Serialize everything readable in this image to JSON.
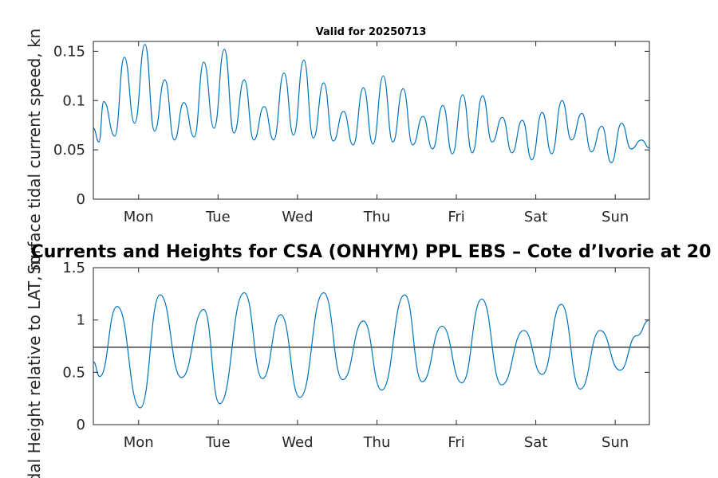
{
  "chart_data": [
    {
      "type": "line",
      "title": "Valid for 20250713",
      "ylabel": "Surface tidal current speed, kn",
      "xlabel": "",
      "x_tick_labels": [
        "Mon",
        "Tue",
        "Wed",
        "Thu",
        "Fri",
        "Sat",
        "Sun"
      ],
      "x_tick_positions_days": [
        0,
        1,
        2,
        3,
        4,
        5,
        6
      ],
      "xlim": [
        -0.57,
        6.43
      ],
      "ylim": [
        0,
        0.16
      ],
      "y_ticks": [
        0,
        0.05,
        0.1,
        0.15
      ],
      "y_tick_labels": [
        "0",
        "0.05",
        "0.1",
        "0.15"
      ],
      "grid": false,
      "series_color": "#0072BD",
      "series": [
        {
          "x": [
            -0.57,
            -0.5,
            -0.44,
            -0.3,
            -0.18,
            -0.05,
            0.08,
            0.2,
            0.33,
            0.45,
            0.57,
            0.7,
            0.82,
            0.95,
            1.08,
            1.2,
            1.33,
            1.45,
            1.58,
            1.7,
            1.83,
            1.95,
            2.08,
            2.2,
            2.33,
            2.45,
            2.58,
            2.7,
            2.83,
            2.95,
            3.08,
            3.2,
            3.33,
            3.45,
            3.58,
            3.7,
            3.83,
            3.95,
            4.08,
            4.2,
            4.33,
            4.45,
            4.58,
            4.7,
            4.83,
            4.95,
            5.08,
            5.2,
            5.33,
            5.45,
            5.58,
            5.7,
            5.83,
            5.95,
            6.08,
            6.2,
            6.33,
            6.43
          ],
          "y": [
            0.072,
            0.058,
            0.099,
            0.064,
            0.144,
            0.077,
            0.157,
            0.069,
            0.121,
            0.06,
            0.098,
            0.063,
            0.139,
            0.072,
            0.152,
            0.067,
            0.121,
            0.06,
            0.094,
            0.06,
            0.128,
            0.065,
            0.141,
            0.062,
            0.118,
            0.059,
            0.089,
            0.055,
            0.113,
            0.056,
            0.125,
            0.058,
            0.112,
            0.055,
            0.084,
            0.051,
            0.095,
            0.046,
            0.106,
            0.047,
            0.105,
            0.058,
            0.083,
            0.047,
            0.08,
            0.04,
            0.088,
            0.046,
            0.1,
            0.06,
            0.087,
            0.048,
            0.074,
            0.037,
            0.077,
            0.051,
            0.06,
            0.052
          ]
        }
      ]
    },
    {
      "type": "line",
      "title": "Currents and Heights for CSA (ONHYM) PPL EBS  – Cote d’Ivorie at 20",
      "ylabel": "Tidal Height relative to LAT, m",
      "xlabel": "",
      "x_tick_labels": [
        "Mon",
        "Tue",
        "Wed",
        "Thu",
        "Fri",
        "Sat",
        "Sun"
      ],
      "x_tick_positions_days": [
        0,
        1,
        2,
        3,
        4,
        5,
        6
      ],
      "xlim": [
        -0.57,
        6.43
      ],
      "ylim": [
        0,
        1.5
      ],
      "y_ticks": [
        0,
        0.5,
        1,
        1.5
      ],
      "y_tick_labels": [
        "0",
        "0.5",
        "1",
        "1.5"
      ],
      "reference_line": 0.74,
      "reference_line_color": "#404040",
      "grid": false,
      "series_color": "#0072BD",
      "series": [
        {
          "x": [
            -0.57,
            -0.49,
            -0.27,
            0.02,
            0.27,
            0.54,
            0.82,
            1.02,
            1.33,
            1.56,
            1.79,
            2.03,
            2.33,
            2.57,
            2.83,
            3.06,
            3.35,
            3.57,
            3.82,
            4.07,
            4.32,
            4.57,
            4.85,
            5.08,
            5.32,
            5.56,
            5.81,
            6.06,
            6.27,
            6.43
          ],
          "y": [
            0.6,
            0.46,
            1.13,
            0.16,
            1.24,
            0.45,
            1.1,
            0.2,
            1.26,
            0.44,
            1.05,
            0.26,
            1.26,
            0.43,
            0.99,
            0.33,
            1.24,
            0.41,
            0.94,
            0.4,
            1.2,
            0.38,
            0.9,
            0.48,
            1.15,
            0.34,
            0.9,
            0.52,
            0.85,
            1.0
          ]
        }
      ]
    }
  ]
}
